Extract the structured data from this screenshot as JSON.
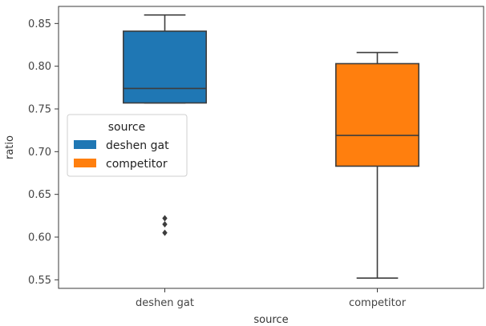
{
  "chart_data": {
    "type": "boxplot",
    "xlabel": "source",
    "ylabel": "ratio",
    "categories": [
      "deshen gat",
      "competitor"
    ],
    "ylim": [
      0.54,
      0.87
    ],
    "yticks": [
      0.55,
      0.6,
      0.65,
      0.7,
      0.75,
      0.8,
      0.85
    ],
    "ytick_labels": [
      "0.55",
      "0.60",
      "0.65",
      "0.70",
      "0.75",
      "0.80",
      "0.85"
    ],
    "boxes": [
      {
        "category": "deshen gat",
        "whisker_low": 0.757,
        "q1": 0.757,
        "median": 0.774,
        "q3": 0.841,
        "whisker_high": 0.86,
        "outliers": [
          0.605,
          0.615,
          0.622
        ],
        "color": "#1f77b4"
      },
      {
        "category": "competitor",
        "whisker_low": 0.552,
        "q1": 0.683,
        "median": 0.719,
        "q3": 0.803,
        "whisker_high": 0.816,
        "outliers": [],
        "color": "#ff7f0e"
      }
    ],
    "legend": {
      "title": "source",
      "placement": "center-left",
      "entries": [
        {
          "label": "deshen gat",
          "color": "#1f77b4"
        },
        {
          "label": "competitor",
          "color": "#ff7f0e"
        }
      ]
    }
  }
}
